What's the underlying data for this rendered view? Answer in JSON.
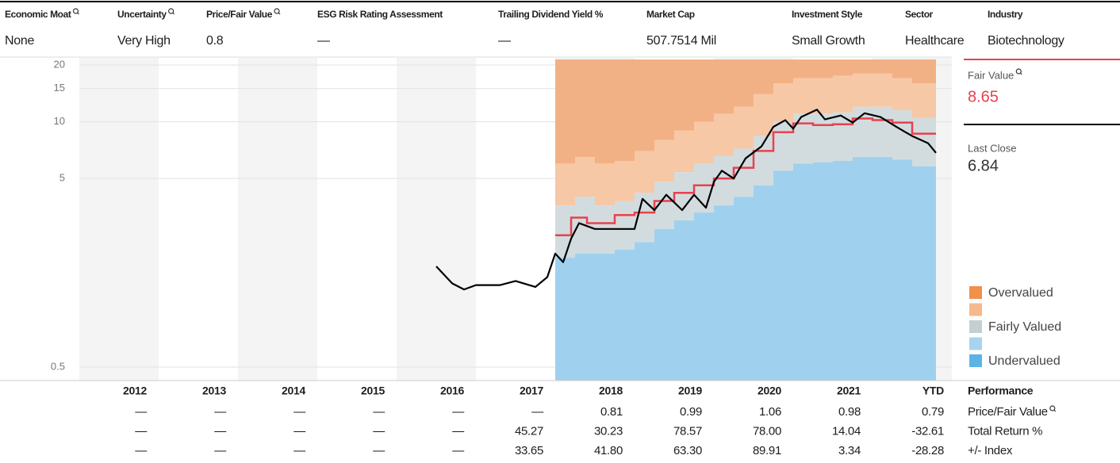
{
  "header": {
    "fields": [
      {
        "label": "Economic Moat",
        "value": "None"
      },
      {
        "label": "Uncertainty",
        "value": "Very High"
      },
      {
        "label": "Price/Fair Value",
        "value": "0.8"
      },
      {
        "label": "ESG Risk Rating Assessment",
        "value": "—"
      },
      {
        "label": "Trailing Dividend Yield %",
        "value": "—"
      },
      {
        "label": "Market Cap",
        "value": "507.7514 Mil"
      },
      {
        "label": "Investment Style",
        "value": "Small Growth"
      },
      {
        "label": "Sector",
        "value": "Healthcare"
      },
      {
        "label": "Industry",
        "value": "Biotechnology"
      }
    ]
  },
  "chart_data": {
    "type": "line",
    "log_scale": true,
    "grid": true,
    "xlim": [
      2012,
      2023
    ],
    "ylim": [
      0.5,
      20
    ],
    "yticks": [
      0.5,
      5,
      10,
      15,
      20
    ],
    "valuation": {
      "x": [
        2018.0,
        2018.25,
        2018.5,
        2018.75,
        2019.0,
        2019.25,
        2019.5,
        2019.75,
        2020.0,
        2020.25,
        2020.5,
        2020.75,
        2021.0,
        2021.25,
        2021.5,
        2021.75,
        2022.0,
        2022.25,
        2022.5
      ],
      "undervalued_top": [
        1.9,
        2.0,
        2.0,
        2.1,
        2.3,
        2.7,
        3.0,
        3.3,
        3.6,
        4.0,
        4.6,
        5.5,
        6.0,
        6.1,
        6.2,
        6.5,
        6.5,
        6.3,
        5.8
      ],
      "fairly_valued_top": [
        3.6,
        4.0,
        3.6,
        3.8,
        4.2,
        4.8,
        5.4,
        6.0,
        6.6,
        7.2,
        8.4,
        10,
        11,
        11,
        11.2,
        12,
        12,
        11.5,
        10.5
      ],
      "overvalued_light_top": [
        6,
        6.5,
        6,
        6.2,
        7,
        8,
        9,
        10,
        11,
        12,
        14,
        16,
        17,
        17,
        17.5,
        18,
        18,
        17,
        16
      ],
      "colors": {
        "undervalued": "#9fd1ef",
        "fairly_valued": "#d2dcdf",
        "overvalued_light": "#f6c8a6",
        "overvalued": "#f2b185"
      }
    },
    "price": {
      "color": "#000000",
      "x": [
        2016.5,
        2016.7,
        2016.85,
        2017.0,
        2017.3,
        2017.5,
        2017.75,
        2017.9,
        2018.0,
        2018.1,
        2018.2,
        2018.3,
        2018.5,
        2018.75,
        2019.0,
        2019.1,
        2019.25,
        2019.4,
        2019.6,
        2019.75,
        2019.9,
        2020.0,
        2020.1,
        2020.25,
        2020.4,
        2020.6,
        2020.75,
        2020.9,
        2021.0,
        2021.1,
        2021.3,
        2021.4,
        2021.6,
        2021.75,
        2021.9,
        2022.1,
        2022.3,
        2022.5,
        2022.7,
        2022.8
      ],
      "values": [
        1.71,
        1.39,
        1.29,
        1.36,
        1.36,
        1.43,
        1.33,
        1.5,
        2.0,
        1.8,
        2.4,
        2.9,
        2.7,
        2.7,
        2.7,
        3.9,
        3.4,
        4.1,
        3.4,
        4.1,
        3.5,
        4.8,
        5.5,
        5.0,
        6.4,
        7.4,
        9.4,
        10.2,
        9.2,
        10.6,
        11.6,
        10.3,
        10.8,
        9.9,
        11.1,
        10.6,
        9.4,
        8.4,
        7.7,
        6.84
      ]
    },
    "fair_value": {
      "color": "#e8414e",
      "x": [
        2018.0,
        2018.2,
        2018.4,
        2018.6,
        2018.75,
        2019.0,
        2019.25,
        2019.5,
        2019.75,
        2020.0,
        2020.25,
        2020.5,
        2020.75,
        2021.0,
        2021.25,
        2021.5,
        2021.75,
        2022.0,
        2022.25,
        2022.5,
        2022.8
      ],
      "values": [
        2.5,
        3.1,
        2.9,
        2.9,
        3.2,
        3.3,
        3.8,
        4.2,
        4.6,
        5.0,
        5.7,
        7.0,
        8.8,
        9.8,
        9.6,
        9.7,
        10.4,
        10.2,
        9.9,
        8.65,
        8.65
      ]
    },
    "panel": {
      "fair_value_label": "Fair Value",
      "fair_value": 8.65,
      "last_close_label": "Last Close",
      "last_close": 6.84
    },
    "legend": [
      {
        "label": "Overvalued",
        "color": "#f0904a"
      },
      {
        "label": null,
        "color": "#f5b98c"
      },
      {
        "label": "Fairly Valued",
        "color": "#c5cfd1"
      },
      {
        "label": null,
        "color": "#a6d4f0"
      },
      {
        "label": "Undervalued",
        "color": "#5bb4e5"
      }
    ]
  },
  "table": {
    "title": "Performance",
    "columns": [
      "2012",
      "2013",
      "2014",
      "2015",
      "2016",
      "2017",
      "2018",
      "2019",
      "2020",
      "2021",
      "YTD"
    ],
    "rows": [
      {
        "label": "Price/Fair Value",
        "cells": [
          "—",
          "—",
          "—",
          "—",
          "—",
          "—",
          "0.81",
          "0.99",
          "1.06",
          "0.98",
          "0.79"
        ]
      },
      {
        "label": "Total Return %",
        "cells": [
          "—",
          "—",
          "—",
          "—",
          "—",
          "45.27",
          "30.23",
          "78.57",
          "78.00",
          "14.04",
          "-32.61"
        ]
      },
      {
        "label": "+/- Index",
        "cells": [
          "—",
          "—",
          "—",
          "—",
          "—",
          "33.65",
          "41.80",
          "63.30",
          "89.91",
          "3.34",
          "-28.28"
        ]
      }
    ]
  }
}
